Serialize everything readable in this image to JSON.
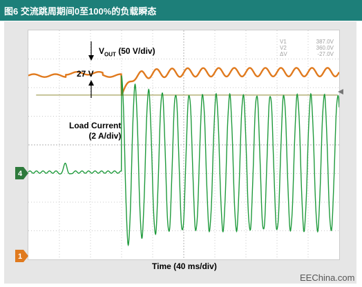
{
  "header": {
    "title": "图6 交流跳周期间0至100%的负载瞬态"
  },
  "annotations": {
    "vout_prefix": "V",
    "vout_sub": "OUT",
    "vout_scale": " (50 V/div)",
    "v27": "27 V",
    "load_current_line1": "Load Current",
    "load_current_line2": "(2 A/div)"
  },
  "cursor_readout": {
    "rows": [
      {
        "name": "V1",
        "value": "387.0V"
      },
      {
        "name": "V2",
        "value": "360.0V"
      },
      {
        "name": "ΔV",
        "value": "-27.0V"
      }
    ]
  },
  "markers": {
    "ch4": "4",
    "ch1": "1"
  },
  "watermark": "EEChina.com",
  "colors": {
    "header": "#1d7f79",
    "vout": "#e07a1e",
    "current": "#1f9a3c",
    "cursor_line": "#b5b27a"
  },
  "chart_data": {
    "type": "line",
    "xlabel": "Time (40 ms/div)",
    "x_divisions": 10,
    "y_divisions": 8,
    "xlim": [
      0,
      10
    ],
    "ylim": [
      0,
      8
    ],
    "load_step_div": 3.0,
    "series": [
      {
        "name": "VOUT",
        "baseline_div": 6.42,
        "dip_div": 5.72,
        "ripple_div": 0.15,
        "cycles_per_div": 2.0
      },
      {
        "name": "Load Current",
        "baseline_div": 3.05,
        "peak_div": 6.4,
        "trough_div": 0.35,
        "cycles_per_div": 2.3
      }
    ],
    "cursors": [
      {
        "name": "V1",
        "value": 387.0,
        "unit": "V"
      },
      {
        "name": "V2",
        "value": 360.0,
        "unit": "V"
      },
      {
        "name": "ΔV",
        "value": -27.0,
        "unit": "V"
      }
    ]
  }
}
